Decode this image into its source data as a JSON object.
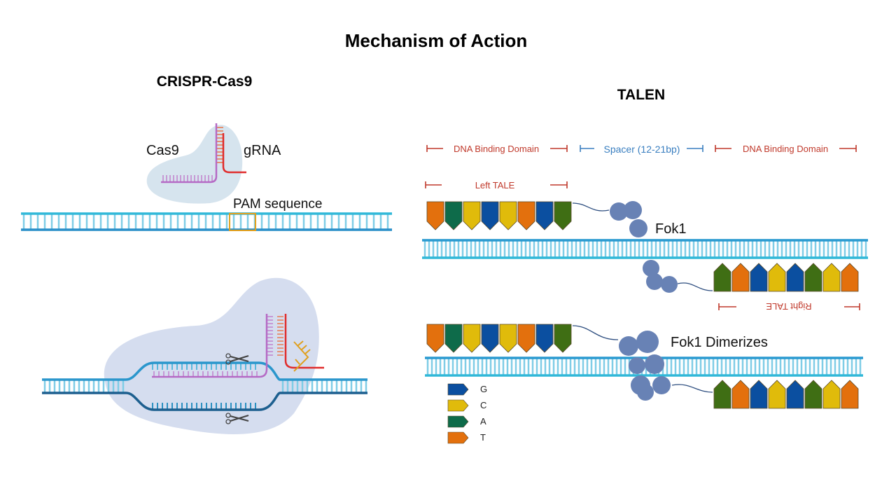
{
  "title": "Mechanism of Action",
  "crispr": {
    "heading": "CRISPR-Cas9",
    "cas9_label": "Cas9",
    "grna_label": "gRNA",
    "pam_label": "PAM sequence"
  },
  "talen": {
    "heading": "TALEN",
    "annotations": {
      "left_domain": "DNA Binding Domain",
      "spacer": "Spacer (12-21bp)",
      "right_domain": "DNA Binding Domain",
      "left_tale": "Left TALE",
      "right_tale": "Right TALE"
    },
    "fok1_label": "Fok1",
    "dimer_label": "Fok1 Dimerizes",
    "left_tale_sequence": [
      "T",
      "A",
      "C",
      "G",
      "C",
      "T",
      "G",
      "X"
    ],
    "right_tale_sequence": [
      "X",
      "T",
      "G",
      "C",
      "G",
      "X",
      "C",
      "T"
    ],
    "legend": [
      {
        "base": "G",
        "color": "#0b4fa0"
      },
      {
        "base": "C",
        "color": "#e0bb0b"
      },
      {
        "base": "A",
        "color": "#0e6b4a"
      },
      {
        "base": "T",
        "color": "#e3700d"
      }
    ]
  },
  "colors": {
    "dna_strand": "#2aa6cf",
    "dna_dark": "#1d5f8f",
    "cas9": "#d6e4ee",
    "cas9_active": "#d5ddef",
    "grna": "#e02c2c",
    "target_rna": "#b56ac5",
    "pam": "#e0a020",
    "fok1": "#6882b5",
    "annotation_red": "#c0392b",
    "annotation_blue": "#3a7fc0",
    "olive": "#3f6e14"
  }
}
